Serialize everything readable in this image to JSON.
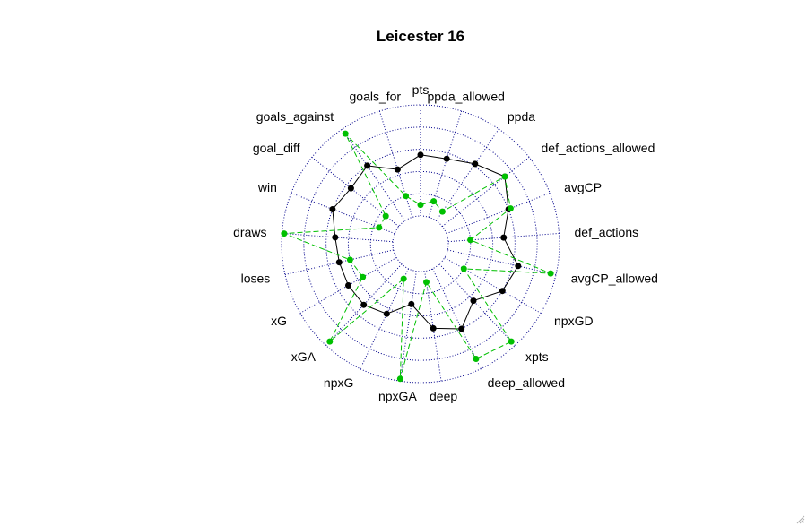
{
  "chart_data": {
    "type": "radar",
    "title": "Leicester 16",
    "axes": [
      "pts",
      "ppda_allowed",
      "ppda",
      "def_actions_allowed",
      "avgCP",
      "def_actions",
      "avgCP_allowed",
      "npxGD",
      "xpts",
      "deep_allowed",
      "deep",
      "npxGA",
      "npxG",
      "xGA",
      "xG",
      "loses",
      "draws",
      "win",
      "goal_diff",
      "goals_against",
      "goals_for"
    ],
    "range": [
      0,
      1
    ],
    "grid_levels": 5,
    "grid": true,
    "series": [
      {
        "color": "#000000",
        "line": "solid",
        "values": [
          0.55,
          0.55,
          0.62,
          0.72,
          0.6,
          0.5,
          0.65,
          0.6,
          0.45,
          0.6,
          0.52,
          0.3,
          0.45,
          0.5,
          0.5,
          0.5,
          0.52,
          0.6,
          0.55,
          0.6,
          0.45
        ]
      },
      {
        "color": "#00c000",
        "line": "dashed",
        "values": [
          0.1,
          0.15,
          0.1,
          0.72,
          0.62,
          0.2,
          0.95,
          0.2,
          0.95,
          0.9,
          0.1,
          0.98,
          0.1,
          0.95,
          0.35,
          0.4,
          0.98,
          0.15,
          0.15,
          0.95,
          0.2
        ]
      }
    ]
  }
}
